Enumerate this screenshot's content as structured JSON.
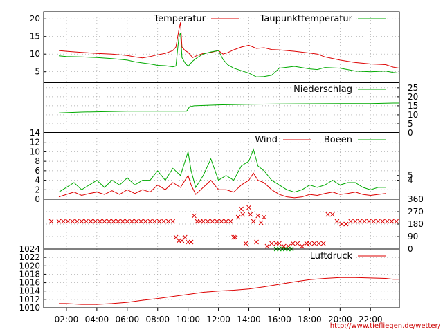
{
  "source_url": "http://www.tiefliegen.de/wetter/",
  "x_tick_labels": [
    "02:00",
    "04:00",
    "06:00",
    "08:00",
    "10:00",
    "12:00",
    "14:00",
    "16:00",
    "18:00",
    "20:00",
    "22:00"
  ],
  "colors": {
    "red": "#dd0000",
    "green": "#00aa00",
    "axis": "#000000"
  },
  "chart_data": [
    {
      "type": "line",
      "x_unit": "hour",
      "xlim": [
        0.5,
        23.9
      ],
      "ylim": [
        2,
        22
      ],
      "yticks_left": [
        5,
        10,
        15,
        20
      ],
      "legend_position": "top",
      "series": [
        {
          "name": "Temperatur",
          "color": "#dd0000",
          "x": [
            0.5,
            1.0,
            1.5,
            2,
            3,
            4,
            5,
            6,
            6.5,
            7,
            7.5,
            8,
            8.5,
            9,
            9.2,
            9.4,
            9.5,
            9.6,
            9.8,
            10,
            10.3,
            10.6,
            11,
            11.5,
            12,
            12.3,
            12.6,
            13,
            13.5,
            14,
            14.5,
            15,
            15.5,
            16,
            17,
            18,
            18.5,
            19,
            20,
            21,
            22,
            23,
            23.5,
            23.9
          ],
          "y": [
            10.5,
            null,
            11,
            10.8,
            10.5,
            10.2,
            10,
            9.6,
            9.2,
            8.9,
            9.3,
            9.8,
            10.2,
            11,
            12,
            17,
            19,
            12,
            11,
            10.5,
            9,
            9.6,
            10.2,
            10.5,
            11,
            10,
            10.4,
            11.2,
            12,
            12.5,
            11.6,
            11.8,
            11.3,
            11.2,
            10.8,
            10.3,
            10,
            9.2,
            8.3,
            7.6,
            7.2,
            7,
            6.3,
            6
          ]
        },
        {
          "name": "Taupunkttemperatur",
          "color": "#00aa00",
          "x": [
            0.5,
            1.0,
            1.5,
            2,
            3,
            4,
            5,
            6,
            6.5,
            7,
            7.5,
            8,
            8.5,
            9,
            9.2,
            9.4,
            9.5,
            9.6,
            9.8,
            10,
            10.3,
            10.6,
            11,
            11.5,
            12,
            12.3,
            12.6,
            13,
            13.5,
            14,
            14.5,
            15,
            15.5,
            16,
            17,
            18,
            18.5,
            19,
            20,
            21,
            22,
            23,
            23.5,
            23.9
          ],
          "y": [
            8.5,
            null,
            9.5,
            9.3,
            9.2,
            9,
            8.7,
            8.3,
            7.8,
            7.5,
            7.2,
            6.8,
            6.7,
            6.4,
            6.6,
            15,
            16,
            9,
            7.5,
            6.5,
            8,
            9,
            10,
            10.6,
            11,
            8.5,
            7,
            6,
            5.3,
            4.6,
            3.5,
            3.6,
            4,
            6,
            6.5,
            5.8,
            5.6,
            6.2,
            6,
            5.2,
            5,
            5.2,
            4.8,
            4.6
          ]
        }
      ]
    },
    {
      "type": "line",
      "x_unit": "hour",
      "xlim": [
        0.5,
        23.9
      ],
      "ylim": [
        0,
        28
      ],
      "yticks_right": [
        0,
        5,
        10,
        15,
        20,
        25
      ],
      "legend_position": "top",
      "series": [
        {
          "name": "Niederschlag",
          "color": "#00aa00",
          "x": [
            0.5,
            1.0,
            1.5,
            3,
            6,
            9,
            9.9,
            10.1,
            10.4,
            12,
            14,
            16,
            18,
            20,
            22,
            23.5,
            23.9
          ],
          "y": [
            10,
            null,
            11,
            11.5,
            12,
            12,
            12,
            14.5,
            15,
            15.5,
            15.8,
            16,
            16.1,
            16.2,
            16.2,
            16.5,
            16.5
          ]
        }
      ]
    },
    {
      "type": "line",
      "x_unit": "hour",
      "xlim": [
        0.5,
        23.9
      ],
      "ylim": [
        0,
        14
      ],
      "yticks_left": [
        0,
        2,
        4,
        6,
        8,
        10,
        12,
        14
      ],
      "yticks_right": [
        4,
        5
      ],
      "legend_position": "top",
      "series": [
        {
          "name": "Wind",
          "color": "#dd0000",
          "x": [
            1.5,
            2,
            2.5,
            3,
            3.5,
            4,
            4.5,
            5,
            5.5,
            6,
            6.5,
            7,
            7.5,
            8,
            8.5,
            9,
            9.5,
            10,
            10.2,
            10.5,
            11,
            11.5,
            12,
            12.5,
            13,
            13.5,
            14,
            14.3,
            14.6,
            15,
            15.5,
            16,
            16.5,
            17,
            17.5,
            18,
            18.5,
            19,
            19.5,
            20,
            20.5,
            21,
            21.5,
            22,
            22.5,
            23
          ],
          "y": [
            0.5,
            1,
            1.5,
            0.8,
            1.2,
            1.5,
            1,
            1.8,
            1,
            2,
            1.2,
            2,
            1.5,
            3,
            2,
            3.5,
            2.5,
            5,
            3,
            1,
            2.5,
            4,
            2,
            2,
            1.5,
            3,
            4,
            5.5,
            4,
            3.5,
            2,
            1,
            0.5,
            0.3,
            0.5,
            1,
            0.8,
            1.2,
            1.5,
            1,
            1.2,
            1.5,
            1,
            0.8,
            1,
            1.2
          ]
        },
        {
          "name": "Boeen",
          "color": "#00aa00",
          "x": [
            1.5,
            2,
            2.5,
            3,
            3.5,
            4,
            4.5,
            5,
            5.5,
            6,
            6.5,
            7,
            7.5,
            8,
            8.5,
            9,
            9.5,
            10,
            10.2,
            10.5,
            11,
            11.5,
            12,
            12.5,
            13,
            13.5,
            14,
            14.3,
            14.6,
            15,
            15.5,
            16,
            16.5,
            17,
            17.5,
            18,
            18.5,
            19,
            19.5,
            20,
            20.5,
            21,
            21.5,
            22,
            22.5,
            23
          ],
          "y": [
            1.5,
            2.5,
            3.5,
            2,
            3,
            4,
            2.5,
            4,
            3,
            4.5,
            3,
            4,
            4,
            6,
            4,
            6.5,
            5,
            10,
            6,
            2.5,
            5,
            8.5,
            4,
            5,
            4,
            7,
            8,
            10.5,
            7,
            6,
            4,
            3,
            2,
            1.5,
            2,
            3,
            2.5,
            3,
            4,
            3,
            3.5,
            3.5,
            2.5,
            2,
            2.5,
            2.5
          ]
        }
      ]
    },
    {
      "type": "scatter",
      "x_unit": "hour",
      "xlim": [
        0.5,
        23.9
      ],
      "ylim": [
        0,
        360
      ],
      "yticks_right": [
        0,
        90,
        180,
        270,
        360
      ],
      "series": [
        {
          "name": "",
          "color": "#dd0000",
          "marker": "x",
          "x": [
            1.0,
            1.5,
            1.8,
            2.1,
            2.4,
            2.7,
            3.0,
            3.3,
            3.6,
            3.9,
            4.2,
            4.5,
            4.8,
            5.1,
            5.4,
            5.7,
            6.0,
            6.3,
            6.6,
            6.9,
            7.2,
            7.5,
            7.8,
            8.1,
            8.4,
            8.7,
            9.0,
            9.2,
            9.4,
            9.6,
            9.8,
            10.0,
            10.2,
            10.4,
            10.6,
            10.8,
            11.0,
            11.3,
            11.6,
            11.9,
            12.2,
            12.5,
            12.8,
            13.0,
            13.1,
            13.3,
            13.5,
            13.6,
            13.8,
            14.0,
            14.1,
            14.3,
            14.5,
            14.6,
            14.8,
            15.0,
            15.2,
            15.5,
            15.8,
            16.0,
            16.3,
            16.6,
            16.9,
            17.2,
            17.5,
            17.8,
            18.0,
            18.3,
            18.6,
            18.9,
            19.2,
            19.5,
            19.8,
            20.1,
            20.4,
            20.7,
            21.0,
            21.3,
            21.6,
            21.9,
            22.2,
            22.5,
            22.8,
            23.1,
            23.4,
            23.7
          ],
          "y": [
            200,
            200,
            200,
            200,
            200,
            200,
            200,
            200,
            200,
            200,
            200,
            200,
            200,
            200,
            200,
            200,
            200,
            200,
            200,
            200,
            200,
            200,
            200,
            200,
            200,
            200,
            200,
            85,
            60,
            60,
            85,
            50,
            50,
            240,
            200,
            200,
            200,
            200,
            200,
            200,
            200,
            200,
            200,
            85,
            85,
            230,
            290,
            250,
            40,
            300,
            250,
            200,
            50,
            240,
            190,
            230,
            20,
            40,
            40,
            40,
            20,
            20,
            40,
            40,
            20,
            40,
            40,
            40,
            40,
            40,
            250,
            250,
            200,
            180,
            180,
            200,
            200,
            200,
            200,
            200,
            200,
            200,
            200,
            200,
            200,
            200
          ]
        },
        {
          "name": "",
          "color": "#00aa00",
          "marker": "x",
          "x": [
            15.8,
            16.0,
            16.2,
            16.4,
            16.6,
            16.8
          ],
          "y": [
            0,
            0,
            0,
            0,
            0,
            0
          ]
        }
      ]
    },
    {
      "type": "line",
      "x_unit": "hour",
      "xlim": [
        0.5,
        23.9
      ],
      "ylim": [
        1010,
        1024
      ],
      "yticks_left": [
        1010,
        1012,
        1014,
        1016,
        1018,
        1020,
        1022,
        1024
      ],
      "legend_position": "top",
      "series": [
        {
          "name": "Luftdruck",
          "color": "#dd0000",
          "x": [
            0.5,
            1.0,
            1.5,
            2,
            3,
            4,
            5,
            6,
            7,
            8,
            9,
            10,
            11,
            12,
            13,
            14,
            15,
            16,
            17,
            18,
            19,
            20,
            21,
            22,
            23,
            23.5,
            23.9
          ],
          "y": [
            1011,
            null,
            1011,
            1011,
            1010.8,
            1010.8,
            1011,
            1011.3,
            1011.8,
            1012.2,
            1012.7,
            1013.2,
            1013.7,
            1014,
            1014.2,
            1014.5,
            1015,
            1015.6,
            1016.2,
            1016.7,
            1017,
            1017.2,
            1017.2,
            1017.1,
            1017,
            1016.8,
            1016.8
          ]
        }
      ]
    }
  ]
}
